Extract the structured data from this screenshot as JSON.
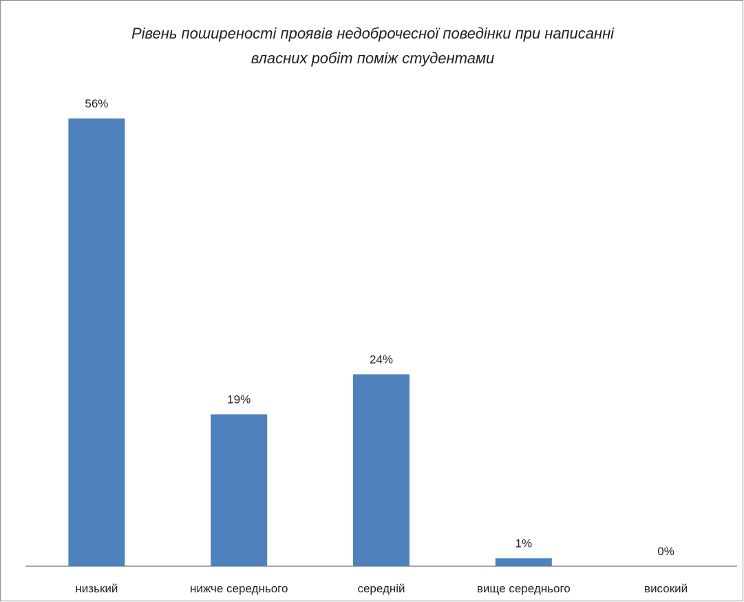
{
  "chart_data": {
    "type": "bar",
    "title_lines": [
      "Рівень поширеності проявів недоброчесної поведінки при написанні",
      "власних робіт поміж студентами"
    ],
    "categories": [
      "низький",
      "нижче середнього",
      "середній",
      "вище середнього",
      "високий"
    ],
    "values": [
      56,
      19,
      24,
      1,
      0
    ],
    "data_labels": [
      "56%",
      "19%",
      "24%",
      "1%",
      "0%"
    ],
    "unit": "%",
    "ylim": [
      0,
      60
    ],
    "grid": false,
    "legend": "none",
    "colors": {
      "bar": "#4f81bd",
      "axis": "#8c8c8c",
      "text": "#1f1f1f"
    }
  }
}
